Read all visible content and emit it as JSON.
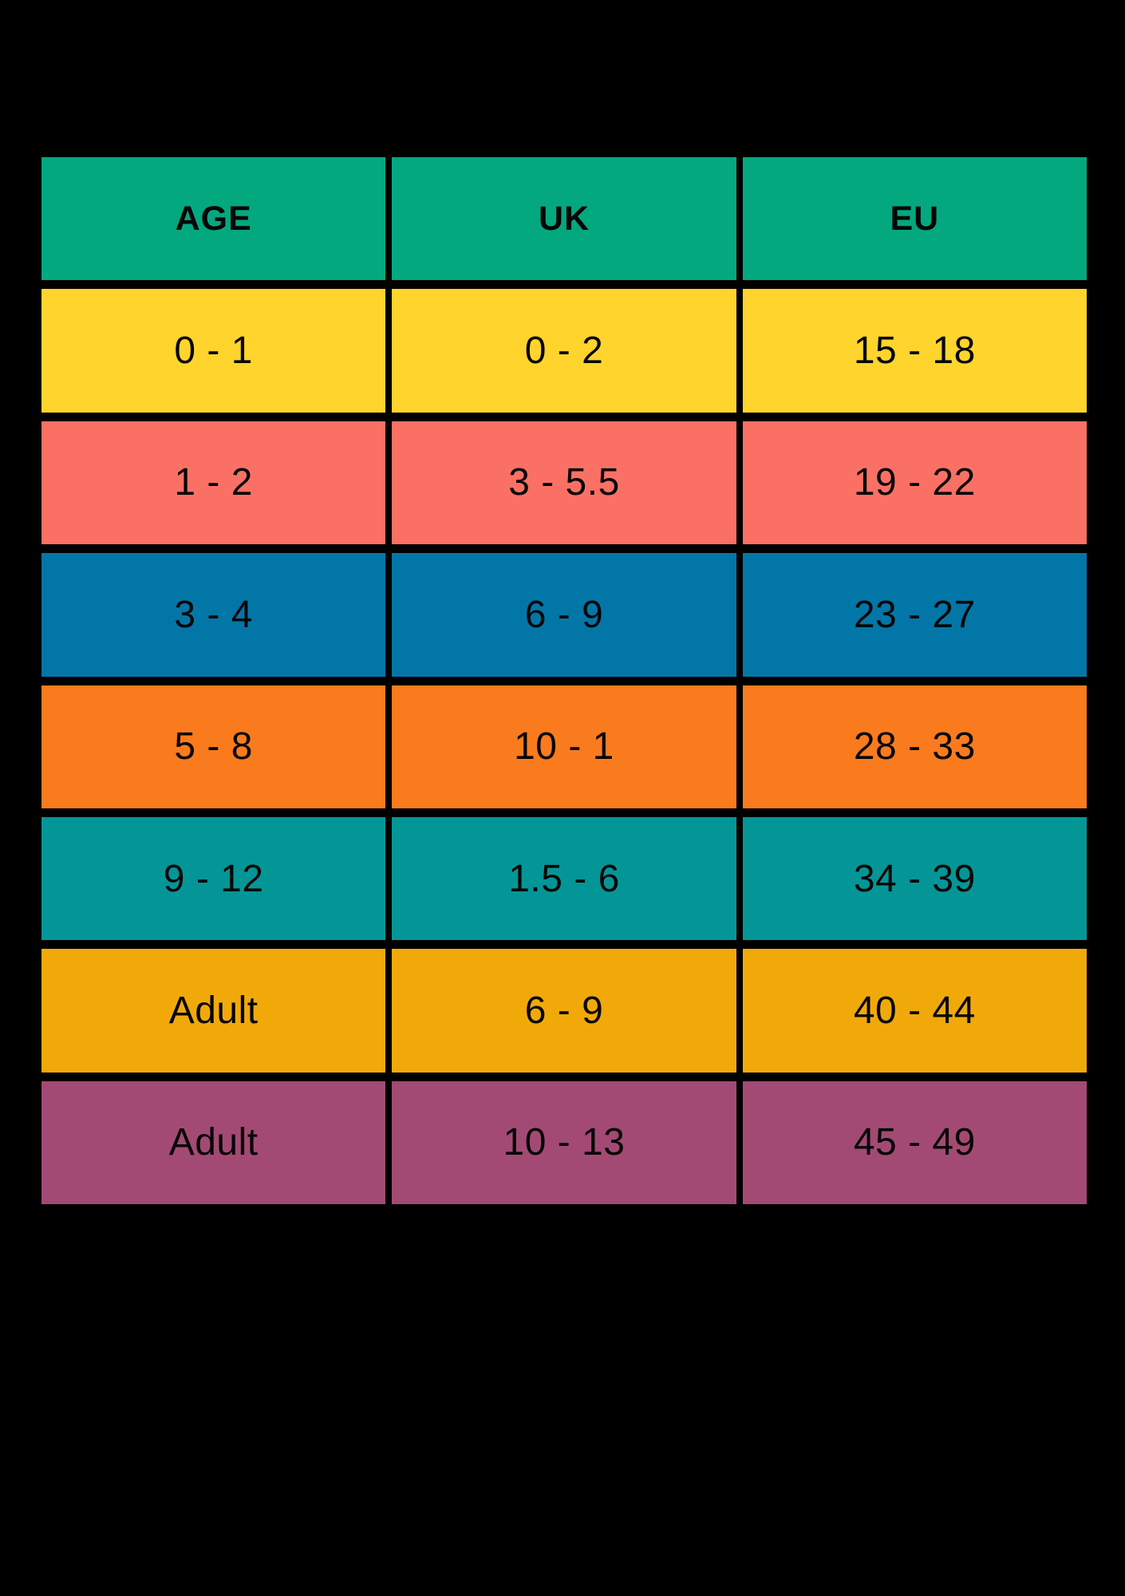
{
  "page": {
    "background": "#000000",
    "text_color": "#060606"
  },
  "chart_data": {
    "type": "table",
    "columns": [
      "AGE",
      "UK",
      "EU"
    ],
    "header_color": "#03A87E",
    "rows": [
      {
        "age": "0 - 1",
        "uk": "0 - 2",
        "eu": "15 - 18",
        "color": "#FFD42C",
        "color_name": "yellow"
      },
      {
        "age": "1 - 2",
        "uk": "3 - 5.5",
        "eu": "19 - 22",
        "color": "#FB7065",
        "color_name": "salmon"
      },
      {
        "age": "3 - 4",
        "uk": "6 - 9",
        "eu": "23 - 27",
        "color": "#0376A8",
        "color_name": "blue"
      },
      {
        "age": "5 - 8",
        "uk": "10 - 1",
        "eu": "28 - 33",
        "color": "#FA7B1D",
        "color_name": "orange"
      },
      {
        "age": "9 - 12",
        "uk": "1.5 - 6",
        "eu": "34 - 39",
        "color": "#049697",
        "color_name": "teal"
      },
      {
        "age": "Adult",
        "uk": "6 - 9",
        "eu": "40 - 44",
        "color": "#F1A90A",
        "color_name": "gold"
      },
      {
        "age": "Adult",
        "uk": "10 - 13",
        "eu": "45 - 49",
        "color": "#A34A74",
        "color_name": "plum"
      }
    ]
  }
}
